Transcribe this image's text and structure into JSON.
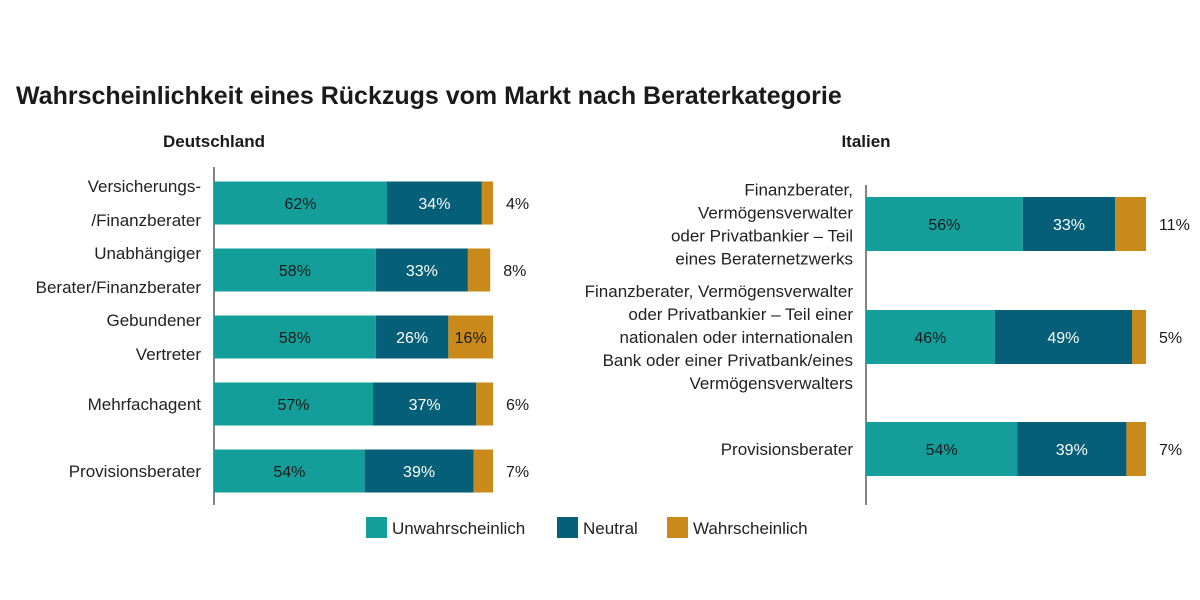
{
  "chart_data": {
    "type": "bar",
    "orientation": "horizontal",
    "stacked": true,
    "title": "Wahrscheinlichkeit eines Rückzugs vom Markt nach Beraterkategorie",
    "legend": {
      "placement": "bottom-center",
      "entries": [
        "Unwahrscheinlich",
        "Neutral",
        "Wahrscheinlich"
      ]
    },
    "colors": {
      "Unwahrscheinlich": "#139E9A",
      "Neutral": "#055F78",
      "Wahrscheinlich": "#C9891B"
    },
    "xlim": [
      0,
      100
    ],
    "unit": "%",
    "grid": false,
    "panels": [
      {
        "title": "Deutschland",
        "categories": [
          [
            "Versicherungs-",
            "/Finanzberater"
          ],
          [
            "Unabhängiger",
            "Berater/Finanzberater"
          ],
          [
            "Gebundener",
            "Vertreter"
          ],
          [
            "Mehrfachagent"
          ],
          [
            "Provisionsberater"
          ]
        ],
        "series": [
          {
            "name": "Unwahrscheinlich",
            "values": [
              62,
              58,
              58,
              57,
              54
            ]
          },
          {
            "name": "Neutral",
            "values": [
              34,
              33,
              26,
              37,
              39
            ]
          },
          {
            "name": "Wahrscheinlich",
            "values": [
              4,
              8,
              16,
              6,
              7
            ]
          }
        ]
      },
      {
        "title": "Italien",
        "categories": [
          [
            "Finanzberater,",
            "Vermögensverwalter",
            "oder Privatbankier – Teil",
            "eines Beraternetzwerks"
          ],
          [
            "Finanzberater, Vermögensverwalter",
            "oder Privatbankier – Teil einer",
            "nationalen oder internationalen",
            "Bank oder einer Privatbank/eines",
            "Vermögensverwalters"
          ],
          [
            "Provisionsberater"
          ]
        ],
        "series": [
          {
            "name": "Unwahrscheinlich",
            "values": [
              56,
              46,
              54
            ]
          },
          {
            "name": "Neutral",
            "values": [
              33,
              49,
              39
            ]
          },
          {
            "name": "Wahrscheinlich",
            "values": [
              11,
              5,
              7
            ]
          }
        ]
      }
    ]
  }
}
